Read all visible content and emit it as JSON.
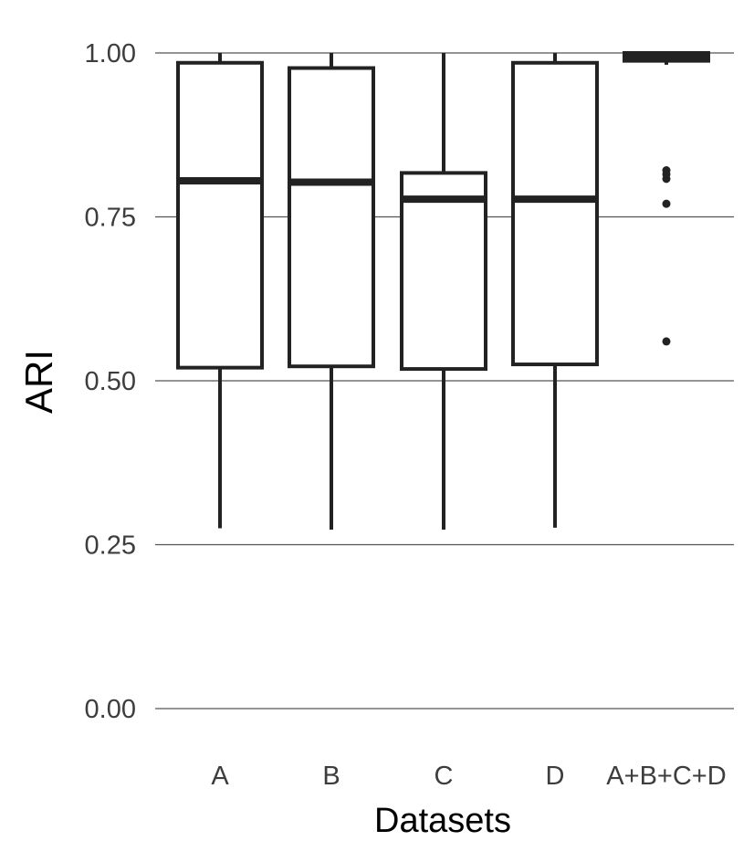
{
  "chart_data": {
    "type": "boxplot",
    "title": "",
    "xlabel": "Datasets",
    "ylabel": "ARI",
    "ylim": [
      0,
      1
    ],
    "yticks": [
      0.0,
      0.25,
      0.5,
      0.75,
      1.0
    ],
    "ytick_labels": [
      "0.00",
      "0.25",
      "0.50",
      "0.75",
      "1.00"
    ],
    "grid": "horizontal",
    "categories": [
      "A",
      "B",
      "C",
      "D",
      "A+B+C+D"
    ],
    "boxes": [
      {
        "label": "A",
        "whisker_low": 0.275,
        "q1": 0.52,
        "median": 0.805,
        "q3": 0.985,
        "whisker_high": 1.0,
        "outliers": []
      },
      {
        "label": "B",
        "whisker_low": 0.273,
        "q1": 0.522,
        "median": 0.803,
        "q3": 0.977,
        "whisker_high": 1.0,
        "outliers": []
      },
      {
        "label": "C",
        "whisker_low": 0.273,
        "q1": 0.518,
        "median": 0.777,
        "q3": 0.817,
        "whisker_high": 1.0,
        "outliers": []
      },
      {
        "label": "D",
        "whisker_low": 0.276,
        "q1": 0.525,
        "median": 0.777,
        "q3": 0.985,
        "whisker_high": 1.0,
        "outliers": []
      },
      {
        "label": "A+B+C+D",
        "whisker_low": 0.982,
        "q1": 0.988,
        "median": 0.993,
        "q3": 1.0,
        "whisker_high": 1.0,
        "outliers": [
          0.821,
          0.815,
          0.808,
          0.77,
          0.56
        ]
      }
    ]
  }
}
